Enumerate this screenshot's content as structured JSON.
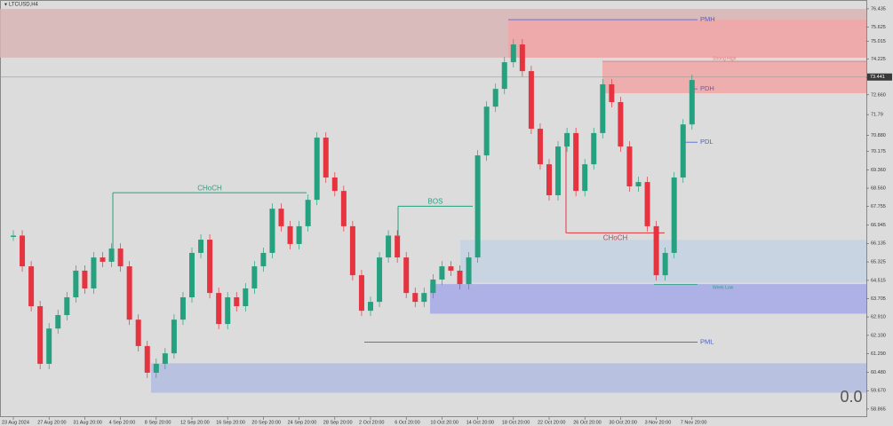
{
  "chart_data": {
    "type": "price",
    "title": "LTCUSD,H4",
    "categories": [
      "23 Aug 2024",
      null,
      null,
      null,
      "27 Aug 20:00",
      null,
      null,
      null,
      "31 Aug 20:00",
      null,
      null,
      null,
      "4 Sep 20:00",
      null,
      null,
      null,
      "8 Sep 20:00",
      null,
      null,
      null,
      "12 Sep 20:00",
      null,
      null,
      null,
      "16 Sep 20:00",
      null,
      null,
      null,
      "20 Sep 20:00",
      null,
      null,
      null,
      "24 Sep 20:00",
      null,
      null,
      null,
      "28 Sep 20:00",
      null,
      null,
      null,
      "2 Oct 20:00",
      null,
      null,
      null,
      "6 Oct 20:00",
      null,
      null,
      null,
      "10 Oct 20:00",
      null,
      null,
      null,
      "14 Oct 20:00",
      null,
      null,
      null,
      "18 Oct 20:00",
      null,
      null,
      null,
      "22 Oct 20:00",
      null,
      null,
      null,
      "26 Oct 20:00",
      null,
      null,
      null,
      "30 Oct 20:00",
      null,
      null,
      null,
      "3 Nov 20:00",
      null,
      null,
      null,
      "7 Nov 20:00"
    ],
    "values": [
      66.48,
      65.13,
      63.38,
      60.85,
      62.4,
      62.99,
      63.77,
      64.94,
      64.16,
      65.52,
      65.33,
      65.91,
      65.13,
      62.79,
      61.63,
      60.46,
      60.85,
      61.31,
      62.79,
      63.77,
      65.72,
      66.3,
      63.96,
      62.6,
      63.77,
      63.38,
      64.16,
      65.13,
      65.72,
      67.66,
      66.89,
      66.11,
      66.89,
      68.05,
      70.78,
      69.03,
      68.44,
      66.89,
      64.74,
      63.18,
      63.57,
      65.52,
      66.48,
      65.52,
      63.96,
      63.57,
      63.96,
      64.55,
      65.13,
      64.94,
      64.35,
      65.52,
      70.0,
      72.14,
      72.92,
      74.09,
      74.87,
      73.7,
      71.17,
      69.61,
      68.25,
      70.39,
      70.98,
      68.44,
      69.61,
      70.98,
      73.12,
      72.34,
      70.39,
      68.64,
      68.83,
      66.89,
      64.74,
      65.72,
      69.03,
      71.36,
      73.31
    ],
    "up_color": "#26a17f",
    "down_color": "#e5343f",
    "ylim": [
      58.51,
      76.51
    ],
    "yticks": [
      76.435,
      75.625,
      75.015,
      74.225,
      73.416,
      {
        "value": 72.66,
        "label": "72.660"
      },
      71.79,
      {
        "value": 70.88,
        "label": "70.880"
      },
      70.175,
      {
        "value": 69.36,
        "label": "69.360"
      },
      {
        "value": 68.56,
        "label": "68.560"
      },
      67.755,
      66.945,
      66.135,
      65.325,
      64.515,
      63.705,
      {
        "value": 62.91,
        "label": "62.910"
      },
      {
        "value": 62.1,
        "label": "62.100"
      },
      {
        "value": 61.29,
        "label": "61.290"
      },
      {
        "value": 60.48,
        "label": "60.480"
      },
      {
        "value": 59.67,
        "label": "59.670"
      },
      58.865
    ],
    "current_price": 73.441,
    "zones": [
      {
        "low": 74.29,
        "high": 76.43,
        "color": "#d8b5b5"
      },
      {
        "low": 74.29,
        "high": 75.96,
        "color": "#f0a9a9"
      },
      {
        "low": 72.73,
        "high": 74.13,
        "color": "#f0a9a9"
      },
      {
        "low": 64.42,
        "high": 66.29,
        "color": "#c6d3e2"
      },
      {
        "low": 63.05,
        "high": 64.35,
        "color": "#a9ace6"
      },
      {
        "low": 59.58,
        "high": 60.87,
        "color": "#b4bedf"
      }
    ],
    "levels": [
      {
        "label": "PMH",
        "value": 75.96,
        "color": "#4a5fd0"
      },
      {
        "label": "Strong High",
        "value": 74.13,
        "color": "#e07a7a"
      },
      {
        "label": "PDH",
        "value": 72.92,
        "color": "#4a5fd0"
      },
      {
        "label": "PDL",
        "value": 70.58,
        "color": "#4a5fd0"
      },
      {
        "label": "Week Low",
        "value": 64.34,
        "color": "#26a17f"
      },
      {
        "label": "PML",
        "value": 61.8,
        "color": "#4a5fd0"
      }
    ],
    "structures": [
      {
        "label": "CHoCH",
        "value": 68.36,
        "color": "#26a17f"
      },
      {
        "label": "BOS",
        "value": 67.77,
        "color": "#26a17f"
      },
      {
        "label": "CHoCH",
        "value": 66.6,
        "color": "#e5343f"
      }
    ],
    "indicator": "0.0"
  }
}
